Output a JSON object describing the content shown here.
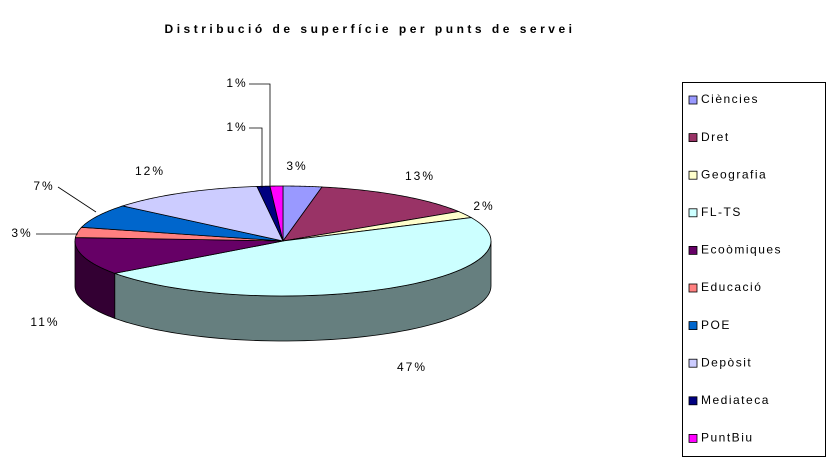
{
  "chart_data": {
    "type": "pie",
    "title": "Distribució de superfície per punts de servei",
    "categories": [
      "Ciències",
      "Dret",
      "Geografia",
      "FL-TS",
      "Ecoòmiques",
      "Educació",
      "POE",
      "Depòsit",
      "Mediateca",
      "PuntBiu"
    ],
    "values": [
      3,
      13,
      2,
      47,
      11,
      3,
      7,
      12,
      1,
      1
    ],
    "value_labels": [
      "3%",
      "13%",
      "2%",
      "47%",
      "11%",
      "3%",
      "7%",
      "12%",
      "1%",
      "1%"
    ],
    "colors": [
      "#9999ff",
      "#993366",
      "#ffffcc",
      "#ccffff",
      "#660066",
      "#ff8080",
      "#0066cc",
      "#ccccff",
      "#000080",
      "#ff00ff"
    ],
    "legend": "right"
  }
}
